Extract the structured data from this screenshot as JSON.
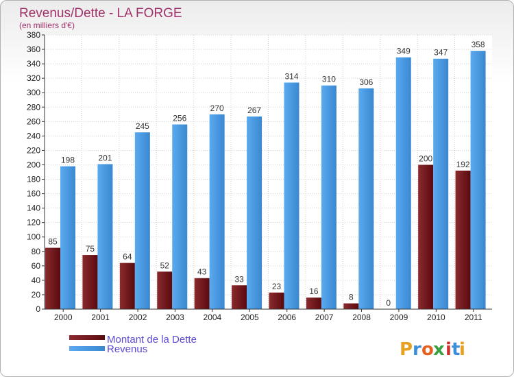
{
  "chart_data": {
    "type": "bar",
    "title": "Revenus/Dette - LA FORGE",
    "subtitle": "(en milliers d'€)",
    "categories": [
      "2000",
      "2001",
      "2002",
      "2003",
      "2004",
      "2005",
      "2006",
      "2007",
      "2008",
      "2009",
      "2010",
      "2011"
    ],
    "series": [
      {
        "name": "Montant de la Dette",
        "color": "#7a1418",
        "values": [
          85,
          75,
          64,
          52,
          43,
          33,
          23,
          16,
          8,
          0,
          200,
          192
        ]
      },
      {
        "name": "Revenus",
        "color": "#4aa0e6",
        "values": [
          198,
          201,
          245,
          256,
          270,
          267,
          314,
          310,
          306,
          349,
          347,
          358
        ]
      }
    ],
    "ylim": [
      0,
      380
    ],
    "ytick_step": 20,
    "grid": true,
    "legend": "bottom-left"
  },
  "logo": {
    "text": "Proxiti",
    "letters": [
      "P",
      "r",
      "o",
      "x",
      "i",
      "t",
      "i"
    ],
    "colors": [
      "#e8a020",
      "#3a8fd8",
      "#e86020",
      "#3aa040",
      "#d03030",
      "#3a8fd8",
      "#e8a020"
    ]
  }
}
